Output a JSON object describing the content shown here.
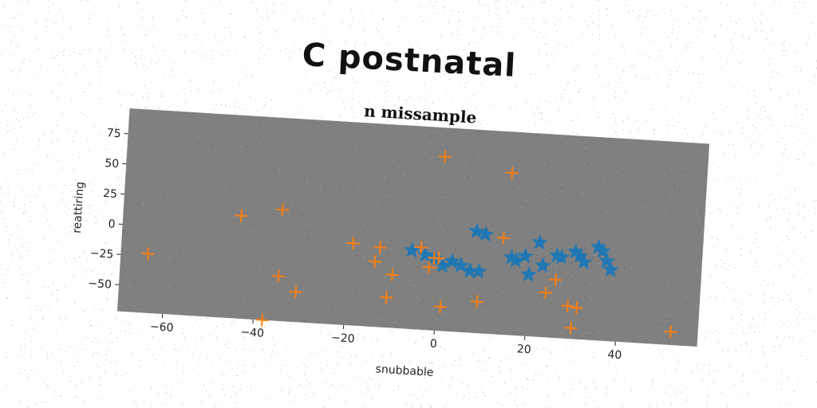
{
  "suptitle": "C postnatal",
  "chart_data": {
    "type": "scatter",
    "title": "n missample",
    "xlabel": "snubbable",
    "ylabel": "reattiring",
    "xlim": [
      -70,
      58
    ],
    "ylim": [
      -72,
      96
    ],
    "xticks": [
      -60,
      -40,
      -20,
      0,
      20,
      40
    ],
    "yticks": [
      -50,
      -25,
      0,
      25,
      50,
      75
    ],
    "grid": false,
    "legend": "none",
    "background_color": "#808080",
    "series": [
      {
        "marker": "star",
        "color": "#1f77b4",
        "points": [
          [
            -6,
            -7
          ],
          [
            -3,
            -10
          ],
          [
            -1,
            -12
          ],
          [
            1,
            -18
          ],
          [
            3,
            -14
          ],
          [
            5,
            -17
          ],
          [
            7,
            -21
          ],
          [
            8,
            12
          ],
          [
            9,
            -21
          ],
          [
            10,
            10
          ],
          [
            16,
            -8
          ],
          [
            17,
            -10
          ],
          [
            19,
            -6
          ],
          [
            20,
            -21
          ],
          [
            22,
            6
          ],
          [
            23,
            -13
          ],
          [
            26,
            -4
          ],
          [
            27,
            -5
          ],
          [
            30,
            0
          ],
          [
            31,
            -3
          ],
          [
            32,
            -8
          ],
          [
            35,
            5
          ],
          [
            36,
            2
          ],
          [
            37,
            -6
          ],
          [
            38,
            -13
          ]
        ]
      },
      {
        "marker": "plus",
        "color": "#ff7f0e",
        "points": [
          [
            -64,
            -23
          ],
          [
            -44,
            13
          ],
          [
            -35,
            20
          ],
          [
            -35,
            -35
          ],
          [
            -31,
            -47
          ],
          [
            -38,
            -72
          ],
          [
            -19,
            -4
          ],
          [
            -14,
            -18
          ],
          [
            -13,
            -6
          ],
          [
            -11,
            -47
          ],
          [
            -10,
            -28
          ],
          [
            -4,
            -4
          ],
          [
            -2,
            -20
          ],
          [
            -1,
            -12
          ],
          [
            0,
            -12
          ],
          [
            0,
            72
          ],
          [
            1,
            -52
          ],
          [
            9,
            -46
          ],
          [
            14,
            8
          ],
          [
            15,
            62
          ],
          [
            24,
            -35
          ],
          [
            26,
            -24
          ],
          [
            29,
            -45
          ],
          [
            30,
            -63
          ],
          [
            31,
            -46
          ],
          [
            52,
            -61
          ]
        ]
      }
    ]
  }
}
